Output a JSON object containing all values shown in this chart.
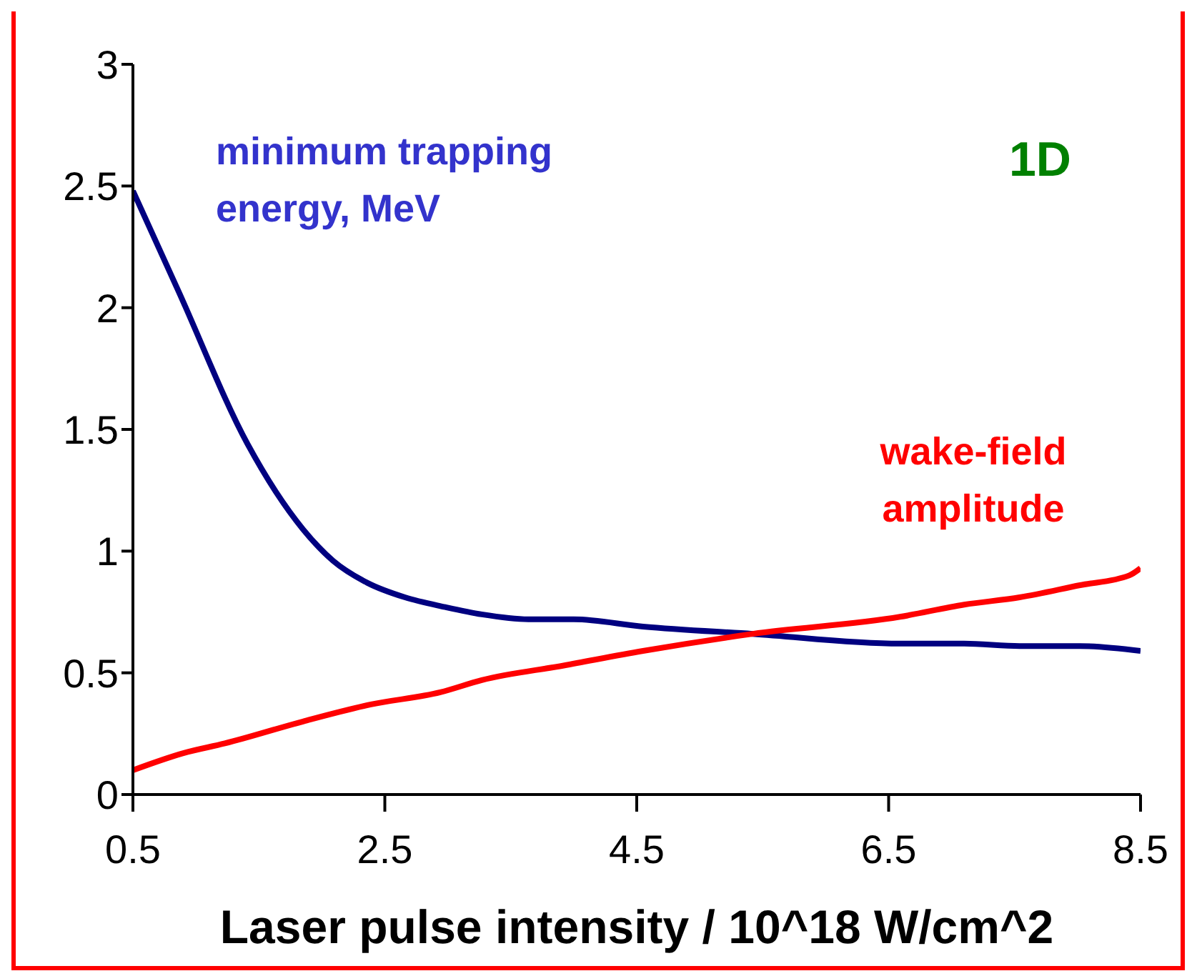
{
  "chart_data": {
    "type": "line",
    "xlabel": "Laser pulse intensity / 10^18 W/cm^2",
    "xlim": [
      0.5,
      8.5
    ],
    "xticks": [
      0.5,
      2.5,
      4.5,
      6.5,
      8.5
    ],
    "ylim": [
      0,
      3
    ],
    "yticks": [
      0,
      0.5,
      1,
      1.5,
      2,
      2.5,
      3
    ],
    "grid": false,
    "legend": false,
    "marker": "none",
    "annotations": [
      "1D"
    ],
    "series": [
      {
        "name": "minimum trapping energy, MeV",
        "color": "#000080",
        "x": [
          0.5,
          0.86,
          1.41,
          1.85,
          2.09,
          2.36,
          2.66,
          2.98,
          3.27,
          3.64,
          4.0,
          4.55,
          5.42,
          6.59,
          7.1,
          7.54,
          8.02,
          8.5
        ],
        "values": [
          2.48,
          2.07,
          1.44,
          1.09,
          0.96,
          0.87,
          0.81,
          0.77,
          0.74,
          0.72,
          0.72,
          0.69,
          0.66,
          0.62,
          0.62,
          0.61,
          0.61,
          0.59
        ]
      },
      {
        "name": "wake-field amplitude",
        "color": "#ff0000",
        "x": [
          0.5,
          0.9,
          1.23,
          1.85,
          2.39,
          2.94,
          3.27,
          3.92,
          4.55,
          5.42,
          6.59,
          7.1,
          7.54,
          8.02,
          8.41,
          8.5
        ],
        "values": [
          0.1,
          0.17,
          0.21,
          0.3,
          0.37,
          0.42,
          0.47,
          0.53,
          0.59,
          0.66,
          0.73,
          0.78,
          0.81,
          0.86,
          0.9,
          0.93
        ]
      }
    ]
  }
}
